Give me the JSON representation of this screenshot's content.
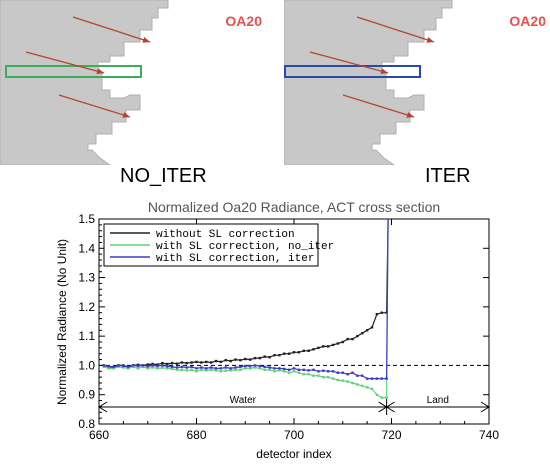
{
  "panels": {
    "left": {
      "caption": "NO_ITER",
      "code": "OA20",
      "box_color": "#3aae5b"
    },
    "right": {
      "caption": "ITER",
      "code": "OA20",
      "box_color": "#2b4aa8"
    },
    "arrow_color": "#b5442e"
  },
  "chart_data": {
    "type": "line",
    "title": "Normalized Oa20 Radiance, ACT cross section",
    "xlabel": "detector index",
    "ylabel": "Normalized Radiance (No Unit)",
    "xlim": [
      660,
      740
    ],
    "ylim": [
      0.8,
      1.5
    ],
    "xticks": [
      "660",
      "680",
      "700",
      "720",
      "740"
    ],
    "yticks": [
      "0.8",
      "0.9",
      "1.0",
      "1.1",
      "1.2",
      "1.3",
      "1.4",
      "1.5"
    ],
    "grid": false,
    "legend_position": "top-left",
    "reference_line": {
      "y": 1.0,
      "style": "dashed"
    },
    "regions": [
      {
        "label": "Water",
        "from": 660,
        "to": 719
      },
      {
        "label": "Land",
        "from": 719,
        "to": 740
      }
    ],
    "series": [
      {
        "name": "without SL correction",
        "color": "#222222",
        "x": [
          661,
          662,
          663,
          664,
          665,
          666,
          667,
          668,
          669,
          670,
          671,
          672,
          673,
          674,
          675,
          676,
          677,
          678,
          679,
          680,
          681,
          682,
          683,
          684,
          685,
          686,
          687,
          688,
          689,
          690,
          691,
          692,
          693,
          694,
          695,
          696,
          697,
          698,
          699,
          700,
          701,
          702,
          703,
          704,
          705,
          706,
          707,
          708,
          709,
          710,
          711,
          712,
          713,
          714,
          715,
          716,
          717,
          718,
          719,
          719.3
        ],
        "y": [
          1.0,
          0.995,
          0.993,
          1.0,
          1.0,
          0.995,
          1.0,
          1.002,
          1.0,
          1.003,
          1.005,
          1.003,
          1.008,
          1.005,
          1.008,
          1.006,
          1.01,
          1.008,
          1.01,
          1.012,
          1.01,
          1.012,
          1.01,
          1.015,
          1.012,
          1.018,
          1.015,
          1.02,
          1.018,
          1.022,
          1.02,
          1.025,
          1.025,
          1.03,
          1.028,
          1.035,
          1.035,
          1.04,
          1.04,
          1.045,
          1.045,
          1.05,
          1.05,
          1.055,
          1.06,
          1.065,
          1.065,
          1.07,
          1.075,
          1.08,
          1.09,
          1.09,
          1.1,
          1.11,
          1.12,
          1.13,
          1.175,
          1.18,
          1.18,
          1.5
        ]
      },
      {
        "name": "with SL correction, no_iter",
        "color": "#5fd37a",
        "x": [
          661,
          662,
          663,
          664,
          665,
          666,
          667,
          668,
          669,
          670,
          671,
          672,
          673,
          674,
          675,
          676,
          677,
          678,
          679,
          680,
          681,
          682,
          683,
          684,
          685,
          686,
          687,
          688,
          689,
          690,
          691,
          692,
          693,
          694,
          695,
          696,
          697,
          698,
          699,
          700,
          701,
          702,
          703,
          704,
          705,
          706,
          707,
          708,
          709,
          710,
          711,
          712,
          713,
          714,
          715,
          716,
          717,
          718,
          719,
          719.3
        ],
        "y": [
          0.995,
          0.99,
          0.99,
          0.995,
          0.993,
          0.99,
          0.995,
          0.99,
          0.995,
          0.99,
          0.993,
          0.99,
          0.992,
          0.99,
          0.988,
          0.985,
          0.985,
          0.983,
          0.985,
          0.98,
          0.985,
          0.983,
          0.985,
          0.983,
          0.98,
          0.982,
          0.983,
          0.985,
          0.985,
          0.99,
          0.99,
          0.993,
          0.99,
          0.985,
          0.985,
          0.98,
          0.983,
          0.98,
          0.975,
          0.98,
          0.975,
          0.97,
          0.97,
          0.965,
          0.965,
          0.96,
          0.96,
          0.955,
          0.95,
          0.948,
          0.945,
          0.94,
          0.935,
          0.93,
          0.925,
          0.92,
          0.9,
          0.89,
          0.89,
          1.5
        ]
      },
      {
        "name": "with SL correction, iter",
        "color": "#3c3cc8",
        "x": [
          661,
          662,
          663,
          664,
          665,
          666,
          667,
          668,
          669,
          670,
          671,
          672,
          673,
          674,
          675,
          676,
          677,
          678,
          679,
          680,
          681,
          682,
          683,
          684,
          685,
          686,
          687,
          688,
          689,
          690,
          691,
          692,
          693,
          694,
          695,
          696,
          697,
          698,
          699,
          700,
          701,
          702,
          703,
          704,
          705,
          706,
          707,
          708,
          709,
          710,
          711,
          712,
          713,
          714,
          715,
          716,
          717,
          718,
          719,
          719.3
        ],
        "y": [
          1.0,
          0.997,
          0.995,
          1.0,
          0.998,
          0.995,
          1.0,
          0.998,
          1.0,
          0.997,
          1.0,
          0.998,
          1.0,
          0.997,
          0.995,
          0.993,
          0.995,
          0.993,
          0.995,
          0.99,
          0.993,
          0.99,
          0.993,
          0.99,
          0.99,
          0.993,
          0.99,
          0.993,
          0.995,
          0.998,
          0.998,
          1.0,
          0.998,
          0.995,
          0.993,
          0.99,
          0.99,
          0.988,
          0.985,
          0.99,
          0.985,
          0.985,
          0.983,
          0.985,
          0.98,
          0.982,
          0.98,
          0.98,
          0.975,
          0.975,
          0.97,
          0.975,
          0.965,
          0.965,
          0.955,
          0.955,
          0.955,
          0.955,
          0.955,
          1.5
        ]
      }
    ]
  }
}
